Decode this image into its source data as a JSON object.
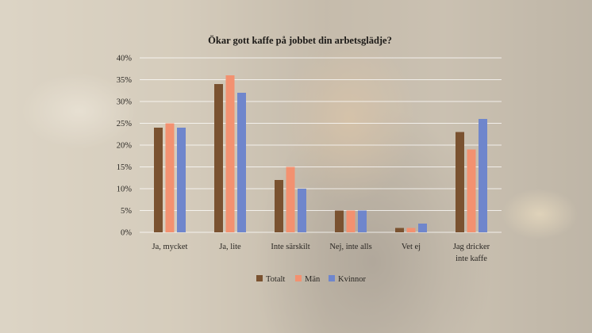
{
  "chart_data": {
    "type": "bar",
    "title": "Ökar gott kaffe på jobbet din arbetsglädje?",
    "categories": [
      [
        "Ja, mycket"
      ],
      [
        "Ja, lite"
      ],
      [
        "Inte särskilt"
      ],
      [
        "Nej, inte alls"
      ],
      [
        "Vet ej"
      ],
      [
        "Jag dricker",
        "inte kaffe"
      ]
    ],
    "series": [
      {
        "name": "Totalt",
        "color": "#7a5230",
        "values": [
          24,
          34,
          12,
          5,
          1,
          23
        ]
      },
      {
        "name": "Män",
        "color": "#f39170",
        "values": [
          25,
          36,
          15,
          5,
          1,
          19
        ]
      },
      {
        "name": "Kvinnor",
        "color": "#6f86cc",
        "values": [
          24,
          32,
          10,
          5,
          2,
          26
        ]
      }
    ],
    "ylim": [
      0,
      40
    ],
    "yticks": [
      "0%",
      "5%",
      "10%",
      "15%",
      "20%",
      "25%",
      "30%",
      "35%",
      "40%"
    ],
    "grid": true,
    "legend_position": "bottom"
  }
}
